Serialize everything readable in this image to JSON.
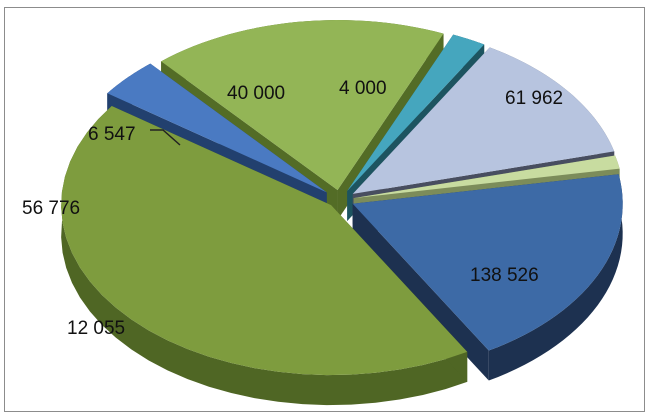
{
  "chart_data": {
    "type": "pie",
    "style": "3d-exploded",
    "values": [
      61962,
      138526,
      12055,
      56776,
      6547,
      40000,
      4000
    ],
    "labels": [
      "61 962",
      "138 526",
      "12 055",
      "56 776",
      "6 547",
      "40 000",
      "4 000"
    ],
    "colors": [
      "#3d6aa6",
      "#7e9c3e",
      "#4a7ac2",
      "#93b556",
      "#45a6be",
      "#b7c4df",
      "#c8dca0"
    ],
    "side_colors": [
      "#1d3150",
      "#4f6624",
      "#22406e",
      "#536c26",
      "#1d5460",
      "#484e60",
      "#7c8c5a"
    ],
    "legend": "none",
    "title": ""
  }
}
